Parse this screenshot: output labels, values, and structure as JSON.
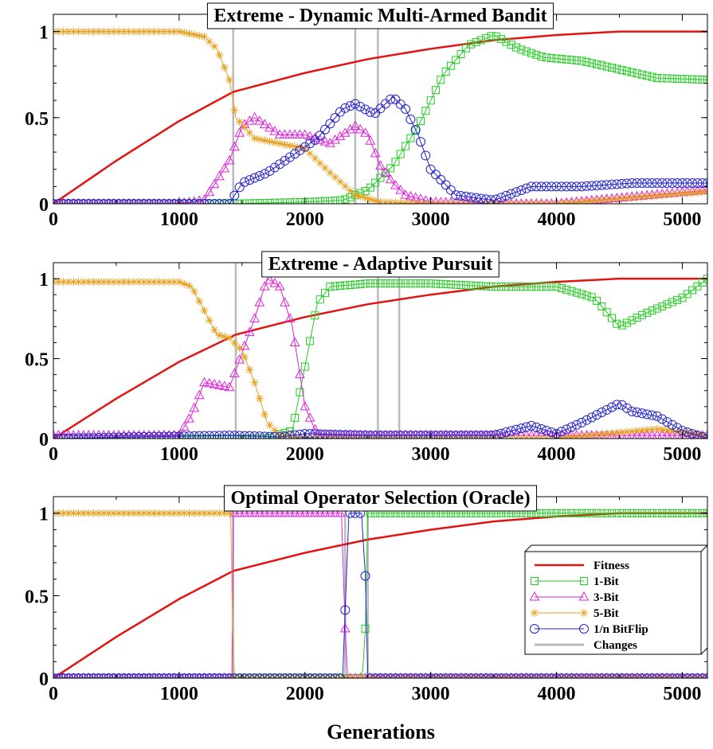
{
  "xlabel": "Generations",
  "legend": {
    "position": "inside bottom-right of third panel",
    "entries": [
      {
        "label": "Fitness",
        "color": "#e3140f",
        "marker": "none"
      },
      {
        "label": "1-Bit",
        "color": "#22cc22",
        "marker": "square"
      },
      {
        "label": "3-Bit",
        "color": "#dd22dd",
        "marker": "triangle"
      },
      {
        "label": "5-Bit",
        "color": "#e8a020",
        "marker": "asterisk"
      },
      {
        "label": "1/n BitFlip",
        "color": "#2222cc",
        "marker": "circle"
      },
      {
        "label": "Changes",
        "color": "#bbbbbb",
        "marker": "none"
      }
    ]
  },
  "chart_data": [
    {
      "type": "line",
      "title": "Extreme - Dynamic Multi-Armed Bandit",
      "xlim": [
        0,
        5200
      ],
      "ylim": [
        0,
        1.1
      ],
      "xticks": [
        0,
        1000,
        2000,
        3000,
        4000,
        5000
      ],
      "yticks": [
        0,
        0.5,
        1
      ],
      "ytick_labels": [
        "0",
        "0.5",
        "1"
      ],
      "changes": [
        1430,
        2400,
        2580
      ],
      "series": [
        {
          "name": "Fitness",
          "x": [
            0,
            500,
            1000,
            1430,
            2000,
            2500,
            3000,
            3500,
            4000,
            4500,
            5200
          ],
          "y": [
            0,
            0.25,
            0.48,
            0.65,
            0.76,
            0.84,
            0.9,
            0.95,
            0.98,
            1.0,
            1.0
          ]
        },
        {
          "name": "1-Bit",
          "x": [
            0,
            1400,
            2000,
            2300,
            2500,
            2700,
            2900,
            3100,
            3300,
            3500,
            3700,
            3900,
            4200,
            4500,
            4800,
            5200
          ],
          "y": [
            0,
            0,
            0.01,
            0.02,
            0.08,
            0.22,
            0.45,
            0.75,
            0.92,
            0.98,
            0.9,
            0.85,
            0.83,
            0.78,
            0.73,
            0.72
          ]
        },
        {
          "name": "3-Bit",
          "x": [
            0,
            1000,
            1200,
            1400,
            1500,
            1600,
            1800,
            2000,
            2200,
            2400,
            2500,
            2600,
            2700,
            2800,
            3000,
            3500,
            4000,
            5200
          ],
          "y": [
            0,
            0,
            0.02,
            0.25,
            0.45,
            0.5,
            0.4,
            0.4,
            0.35,
            0.45,
            0.4,
            0.22,
            0.12,
            0.05,
            0.01,
            0,
            0,
            0.08
          ]
        },
        {
          "name": "5-Bit",
          "x": [
            0,
            600,
            1000,
            1200,
            1300,
            1400,
            1450,
            1600,
            1800,
            2000,
            2200,
            2400,
            2600,
            3000,
            4000,
            5200
          ],
          "y": [
            1,
            1,
            1,
            0.97,
            0.9,
            0.72,
            0.5,
            0.38,
            0.35,
            0.32,
            0.18,
            0.05,
            0.01,
            0,
            0,
            0.07
          ]
        },
        {
          "name": "1/n BitFlip",
          "x": [
            0,
            1400,
            1500,
            1700,
            1900,
            2100,
            2300,
            2400,
            2550,
            2700,
            2800,
            2900,
            3000,
            3200,
            3500,
            3800,
            4200,
            4600,
            5200
          ],
          "y": [
            0,
            0,
            0.12,
            0.18,
            0.28,
            0.38,
            0.55,
            0.58,
            0.52,
            0.62,
            0.55,
            0.4,
            0.2,
            0.05,
            0.02,
            0.1,
            0.1,
            0.12,
            0.12
          ]
        }
      ]
    },
    {
      "type": "line",
      "title": "Extreme - Adaptive Pursuit",
      "xlim": [
        0,
        5200
      ],
      "ylim": [
        0,
        1.1
      ],
      "xticks": [
        0,
        1000,
        2000,
        3000,
        4000,
        5000
      ],
      "yticks": [
        0,
        0.5,
        1
      ],
      "ytick_labels": [
        "0",
        "0.5",
        "1"
      ],
      "changes": [
        1450,
        2580,
        2750
      ],
      "series": [
        {
          "name": "Fitness",
          "x": [
            0,
            500,
            1000,
            1450,
            2000,
            2500,
            3000,
            3500,
            4000,
            4500,
            5200
          ],
          "y": [
            0,
            0.25,
            0.48,
            0.65,
            0.76,
            0.84,
            0.9,
            0.95,
            0.98,
            1.0,
            1.0
          ]
        },
        {
          "name": "1-Bit",
          "x": [
            0,
            1700,
            1900,
            2000,
            2100,
            2200,
            2500,
            3000,
            3500,
            4000,
            4300,
            4500,
            4700,
            5000,
            5200
          ],
          "y": [
            0,
            0,
            0.05,
            0.45,
            0.85,
            0.95,
            0.97,
            0.97,
            0.95,
            0.95,
            0.88,
            0.7,
            0.78,
            0.88,
            1.0
          ]
        },
        {
          "name": "3-Bit",
          "x": [
            0,
            1000,
            1100,
            1200,
            1400,
            1600,
            1700,
            1800,
            1900,
            2000,
            2100,
            3000,
            5200
          ],
          "y": [
            0.02,
            0.02,
            0.15,
            0.35,
            0.32,
            0.75,
            1.0,
            0.95,
            0.7,
            0.2,
            0.02,
            0.02,
            0.02
          ]
        },
        {
          "name": "5-Bit",
          "x": [
            0,
            1000,
            1100,
            1200,
            1300,
            1400,
            1500,
            1600,
            1700,
            1800,
            2000,
            4000,
            4400,
            4800,
            5200
          ],
          "y": [
            0.98,
            0.98,
            0.95,
            0.8,
            0.65,
            0.63,
            0.55,
            0.35,
            0.1,
            0.02,
            0,
            0,
            0.03,
            0.06,
            0.02
          ]
        },
        {
          "name": "1/n BitFlip",
          "x": [
            0,
            1400,
            1800,
            2000,
            2500,
            3000,
            3500,
            3800,
            4000,
            4200,
            4500,
            4600,
            4800,
            5000,
            5200
          ],
          "y": [
            0,
            0.02,
            0.01,
            0.03,
            0.02,
            0.02,
            0.02,
            0.08,
            0.03,
            0.1,
            0.22,
            0.17,
            0.14,
            0.05,
            0
          ]
        }
      ]
    },
    {
      "type": "line",
      "title": "Optimal Operator Selection (Oracle)",
      "xlim": [
        0,
        5200
      ],
      "ylim": [
        0,
        1.1
      ],
      "xticks": [
        0,
        1000,
        2000,
        3000,
        4000,
        5000
      ],
      "yticks": [
        0,
        0.5,
        1
      ],
      "ytick_labels": [
        "0",
        "0.5",
        "1"
      ],
      "changes": [
        1430,
        2320,
        2500
      ],
      "series": [
        {
          "name": "Fitness",
          "x": [
            0,
            500,
            1000,
            1430,
            2000,
            2500,
            3000,
            3500,
            4000,
            4500,
            5200
          ],
          "y": [
            0,
            0.25,
            0.48,
            0.65,
            0.76,
            0.84,
            0.9,
            0.95,
            0.98,
            1.0,
            1.0
          ]
        },
        {
          "name": "1-Bit",
          "x": [
            0,
            2440,
            2460,
            2480,
            2500,
            5200
          ],
          "y": [
            0,
            0,
            0.05,
            0.3,
            1.0,
            1.0
          ]
        },
        {
          "name": "3-Bit",
          "x": [
            0,
            1420,
            1430,
            2290,
            2320,
            2340,
            5200
          ],
          "y": [
            0,
            0,
            1.0,
            1.0,
            0.3,
            0,
            0
          ]
        },
        {
          "name": "5-Bit",
          "x": [
            0,
            1410,
            1425,
            1440,
            5200
          ],
          "y": [
            1,
            1,
            0.3,
            0,
            0
          ]
        },
        {
          "name": "1/n BitFlip",
          "x": [
            0,
            2300,
            2330,
            2350,
            2450,
            2480,
            2500,
            5200
          ],
          "y": [
            0,
            0,
            0.62,
            1.0,
            1.0,
            0.62,
            0,
            0
          ]
        }
      ]
    }
  ]
}
